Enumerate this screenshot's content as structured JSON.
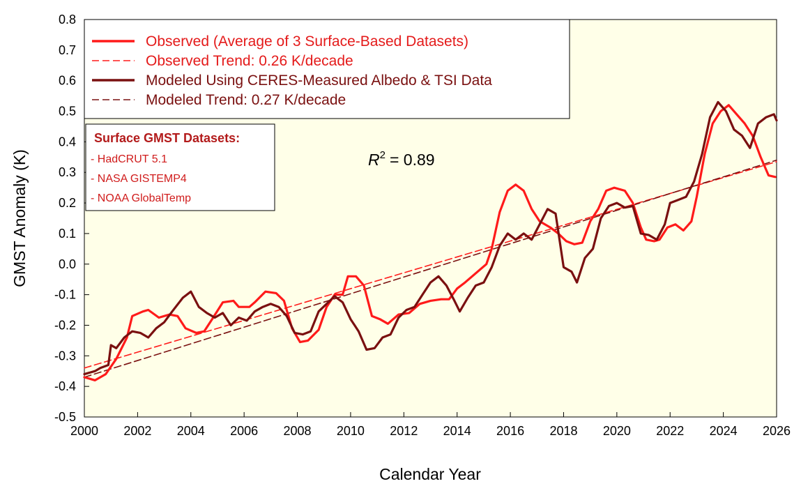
{
  "chart_data": {
    "type": "line",
    "title": "",
    "xlabel": "Calendar Year",
    "ylabel": "GMST Anomaly (K)",
    "xlim": [
      2000,
      2026
    ],
    "ylim": [
      -0.5,
      0.8
    ],
    "x_ticks": [
      "2000",
      "2002",
      "2004",
      "2006",
      "2008",
      "2010",
      "2012",
      "2014",
      "2016",
      "2018",
      "2020",
      "2022",
      "2024",
      "2026"
    ],
    "y_ticks": [
      "-0.5",
      "-0.4",
      "-0.3",
      "-0.2",
      "-0.1",
      "0.0",
      "0.1",
      "0.2",
      "0.3",
      "0.4",
      "0.5",
      "0.6",
      "0.7",
      "0.8"
    ],
    "grid": false,
    "annotation": {
      "r2_label": "R",
      "r2_sup": "2",
      "r2_value": "= 0.89"
    },
    "series": [
      {
        "name": "Observed (Average of 3 Surface-Based Datasets)",
        "style": "solid",
        "color": "#ff1a1a",
        "points": [
          [
            2000.0,
            -0.37
          ],
          [
            2000.4,
            -0.38
          ],
          [
            2000.8,
            -0.36
          ],
          [
            2001.2,
            -0.31
          ],
          [
            2001.6,
            -0.24
          ],
          [
            2001.8,
            -0.17
          ],
          [
            2002.2,
            -0.155
          ],
          [
            2002.4,
            -0.15
          ],
          [
            2002.8,
            -0.175
          ],
          [
            2003.2,
            -0.165
          ],
          [
            2003.5,
            -0.17
          ],
          [
            2003.8,
            -0.21
          ],
          [
            2004.2,
            -0.225
          ],
          [
            2004.5,
            -0.22
          ],
          [
            2004.8,
            -0.18
          ],
          [
            2005.2,
            -0.125
          ],
          [
            2005.6,
            -0.12
          ],
          [
            2005.8,
            -0.14
          ],
          [
            2006.2,
            -0.14
          ],
          [
            2006.4,
            -0.125
          ],
          [
            2006.8,
            -0.09
          ],
          [
            2007.2,
            -0.095
          ],
          [
            2007.5,
            -0.12
          ],
          [
            2007.8,
            -0.21
          ],
          [
            2008.1,
            -0.255
          ],
          [
            2008.4,
            -0.25
          ],
          [
            2008.8,
            -0.215
          ],
          [
            2009.1,
            -0.14
          ],
          [
            2009.4,
            -0.1
          ],
          [
            2009.7,
            -0.1
          ],
          [
            2009.9,
            -0.04
          ],
          [
            2010.2,
            -0.04
          ],
          [
            2010.5,
            -0.07
          ],
          [
            2010.8,
            -0.17
          ],
          [
            2011.1,
            -0.18
          ],
          [
            2011.4,
            -0.195
          ],
          [
            2011.8,
            -0.165
          ],
          [
            2012.2,
            -0.16
          ],
          [
            2012.6,
            -0.13
          ],
          [
            2013.0,
            -0.12
          ],
          [
            2013.4,
            -0.115
          ],
          [
            2013.7,
            -0.115
          ],
          [
            2014.0,
            -0.08
          ],
          [
            2014.3,
            -0.06
          ],
          [
            2014.7,
            -0.03
          ],
          [
            2015.1,
            0.0
          ],
          [
            2015.3,
            0.05
          ],
          [
            2015.6,
            0.17
          ],
          [
            2015.9,
            0.24
          ],
          [
            2016.2,
            0.26
          ],
          [
            2016.5,
            0.24
          ],
          [
            2016.8,
            0.18
          ],
          [
            2017.1,
            0.14
          ],
          [
            2017.5,
            0.12
          ],
          [
            2017.8,
            0.1
          ],
          [
            2018.1,
            0.075
          ],
          [
            2018.4,
            0.065
          ],
          [
            2018.7,
            0.07
          ],
          [
            2019.0,
            0.14
          ],
          [
            2019.3,
            0.18
          ],
          [
            2019.6,
            0.24
          ],
          [
            2019.9,
            0.25
          ],
          [
            2020.3,
            0.24
          ],
          [
            2020.6,
            0.2
          ],
          [
            2020.9,
            0.12
          ],
          [
            2021.1,
            0.08
          ],
          [
            2021.4,
            0.075
          ],
          [
            2021.6,
            0.08
          ],
          [
            2021.9,
            0.12
          ],
          [
            2022.2,
            0.13
          ],
          [
            2022.5,
            0.11
          ],
          [
            2022.8,
            0.14
          ],
          [
            2023.0,
            0.22
          ],
          [
            2023.3,
            0.36
          ],
          [
            2023.6,
            0.46
          ],
          [
            2023.9,
            0.5
          ],
          [
            2024.2,
            0.52
          ],
          [
            2024.5,
            0.49
          ],
          [
            2024.8,
            0.46
          ],
          [
            2025.1,
            0.42
          ],
          [
            2025.4,
            0.35
          ],
          [
            2025.7,
            0.29
          ],
          [
            2025.95,
            0.285
          ]
        ]
      },
      {
        "name": "Observed Trend: 0.26 K/decade",
        "style": "dashed",
        "color": "#ff1a1a",
        "points": [
          [
            2000.0,
            -0.34
          ],
          [
            2026.0,
            0.335
          ]
        ]
      },
      {
        "name": "Modeled Using CERES-Measured Albedo & TSI Data",
        "style": "solid",
        "color": "#7a1010",
        "points": [
          [
            2000.0,
            -0.36
          ],
          [
            2000.4,
            -0.35
          ],
          [
            2000.6,
            -0.34
          ],
          [
            2000.9,
            -0.33
          ],
          [
            2001.0,
            -0.265
          ],
          [
            2001.2,
            -0.275
          ],
          [
            2001.5,
            -0.24
          ],
          [
            2001.8,
            -0.22
          ],
          [
            2002.1,
            -0.225
          ],
          [
            2002.4,
            -0.24
          ],
          [
            2002.7,
            -0.21
          ],
          [
            2003.0,
            -0.19
          ],
          [
            2003.3,
            -0.155
          ],
          [
            2003.7,
            -0.11
          ],
          [
            2004.0,
            -0.09
          ],
          [
            2004.3,
            -0.14
          ],
          [
            2004.6,
            -0.16
          ],
          [
            2004.9,
            -0.175
          ],
          [
            2005.2,
            -0.16
          ],
          [
            2005.5,
            -0.2
          ],
          [
            2005.8,
            -0.175
          ],
          [
            2006.1,
            -0.185
          ],
          [
            2006.4,
            -0.155
          ],
          [
            2006.7,
            -0.14
          ],
          [
            2007.0,
            -0.13
          ],
          [
            2007.3,
            -0.14
          ],
          [
            2007.6,
            -0.17
          ],
          [
            2007.9,
            -0.225
          ],
          [
            2008.2,
            -0.23
          ],
          [
            2008.5,
            -0.22
          ],
          [
            2008.8,
            -0.155
          ],
          [
            2009.1,
            -0.13
          ],
          [
            2009.4,
            -0.105
          ],
          [
            2009.7,
            -0.125
          ],
          [
            2010.0,
            -0.18
          ],
          [
            2010.3,
            -0.22
          ],
          [
            2010.6,
            -0.28
          ],
          [
            2010.9,
            -0.275
          ],
          [
            2011.2,
            -0.24
          ],
          [
            2011.5,
            -0.23
          ],
          [
            2011.8,
            -0.175
          ],
          [
            2012.1,
            -0.15
          ],
          [
            2012.4,
            -0.14
          ],
          [
            2012.7,
            -0.1
          ],
          [
            2013.0,
            -0.06
          ],
          [
            2013.3,
            -0.04
          ],
          [
            2013.6,
            -0.07
          ],
          [
            2013.9,
            -0.12
          ],
          [
            2014.1,
            -0.155
          ],
          [
            2014.4,
            -0.11
          ],
          [
            2014.7,
            -0.07
          ],
          [
            2015.0,
            -0.06
          ],
          [
            2015.3,
            -0.01
          ],
          [
            2015.6,
            0.06
          ],
          [
            2015.9,
            0.1
          ],
          [
            2016.2,
            0.08
          ],
          [
            2016.5,
            0.1
          ],
          [
            2016.8,
            0.08
          ],
          [
            2017.1,
            0.13
          ],
          [
            2017.4,
            0.18
          ],
          [
            2017.7,
            0.165
          ],
          [
            2018.0,
            -0.01
          ],
          [
            2018.3,
            -0.025
          ],
          [
            2018.5,
            -0.06
          ],
          [
            2018.8,
            0.02
          ],
          [
            2019.1,
            0.05
          ],
          [
            2019.4,
            0.15
          ],
          [
            2019.7,
            0.19
          ],
          [
            2020.0,
            0.2
          ],
          [
            2020.3,
            0.185
          ],
          [
            2020.6,
            0.19
          ],
          [
            2020.9,
            0.1
          ],
          [
            2021.2,
            0.095
          ],
          [
            2021.5,
            0.08
          ],
          [
            2021.8,
            0.13
          ],
          [
            2022.0,
            0.2
          ],
          [
            2022.3,
            0.21
          ],
          [
            2022.6,
            0.22
          ],
          [
            2022.9,
            0.27
          ],
          [
            2023.2,
            0.36
          ],
          [
            2023.5,
            0.48
          ],
          [
            2023.8,
            0.53
          ],
          [
            2024.1,
            0.5
          ],
          [
            2024.4,
            0.44
          ],
          [
            2024.7,
            0.42
          ],
          [
            2025.0,
            0.38
          ],
          [
            2025.3,
            0.46
          ],
          [
            2025.6,
            0.48
          ],
          [
            2025.9,
            0.49
          ],
          [
            2026.0,
            0.47
          ]
        ]
      },
      {
        "name": "Modeled Trend: 0.27 K/decade",
        "style": "dashed",
        "color": "#7a1010",
        "points": [
          [
            2000.0,
            -0.37
          ],
          [
            2026.0,
            0.34
          ]
        ]
      }
    ]
  },
  "legend": {
    "items": [
      {
        "label": "Observed (Average of 3 Surface-Based Datasets)"
      },
      {
        "label": "Observed Trend: 0.26 K/decade"
      },
      {
        "label": "Modeled Using CERES-Measured Albedo & TSI Data"
      },
      {
        "label": "Modeled Trend: 0.27 K/decade"
      }
    ]
  },
  "datasets_box": {
    "title": "Surface GMST Datasets:",
    "items": [
      "- HadCRUT 5.1",
      "- NASA GISTEMP4",
      "- NOAA GlobalTemp"
    ]
  },
  "colors": {
    "observed": "#ff1a1a",
    "modeled": "#7a1010",
    "plot_background": "#ffffe8",
    "legend_text_observed": "#e41a1a",
    "legend_text_modeled": "#7a1010",
    "datasets_title": "#b31b1b",
    "datasets_item": "#d01c1c"
  }
}
